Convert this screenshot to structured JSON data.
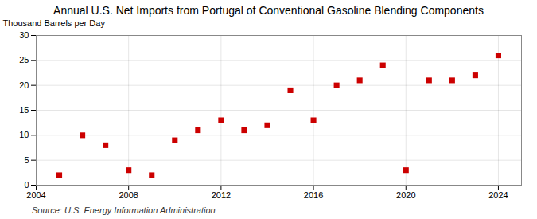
{
  "chart_data": {
    "type": "scatter",
    "title": "Annual U.S. Net Imports from Portugal of Conventional Gasoline Blending Components",
    "ylabel": "Thousand Barrels per Day",
    "annotations": [
      "Source: U.S. Energy Information Administration"
    ],
    "x": [
      2005,
      2006,
      2007,
      2008,
      2009,
      2010,
      2011,
      2012,
      2013,
      2014,
      2015,
      2016,
      2017,
      2018,
      2019,
      2020,
      2021,
      2022,
      2023,
      2024
    ],
    "values": [
      2.0,
      10.0,
      8.0,
      3.0,
      2.0,
      9.0,
      11.0,
      13.0,
      11.0,
      12.0,
      19.0,
      13.0,
      20.0,
      21.0,
      24.0,
      3.0,
      21.0,
      21.0,
      22.0,
      26.0
    ],
    "color": "#cc0000",
    "marker": "square",
    "xlim": [
      2004,
      2025
    ],
    "ylim": [
      0,
      30
    ],
    "xticks": [
      2004,
      2008,
      2012,
      2016,
      2020,
      2024
    ],
    "yticks": [
      0,
      5,
      10,
      15,
      20,
      25,
      30
    ],
    "grid": true
  }
}
